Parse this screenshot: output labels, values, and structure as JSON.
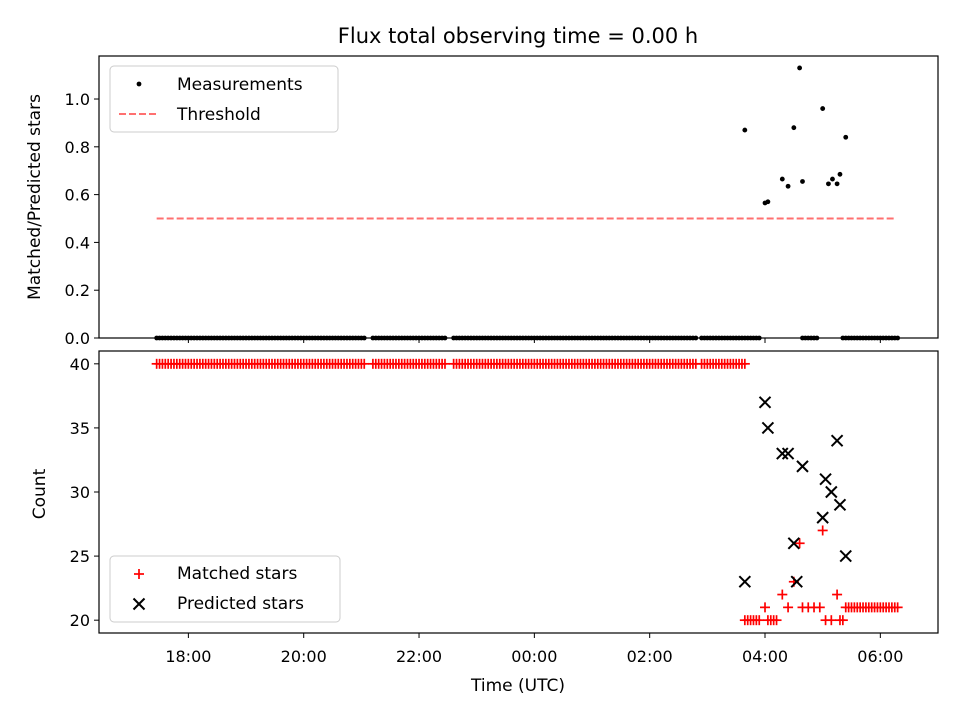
{
  "title": "Flux total observing time = 0.00 h",
  "x_axis": {
    "label": "Time (UTC)",
    "ticks": [
      {
        "hour": 18,
        "label": "18:00"
      },
      {
        "hour": 20,
        "label": "20:00"
      },
      {
        "hour": 22,
        "label": "22:00"
      },
      {
        "hour": 24,
        "label": "00:00"
      },
      {
        "hour": 26,
        "label": "02:00"
      },
      {
        "hour": 28,
        "label": "04:00"
      },
      {
        "hour": 30,
        "label": "06:00"
      }
    ]
  },
  "colors": {
    "measurements": "#000000",
    "threshold": "#ff7070",
    "matched": "#ff0000",
    "predicted": "#000000",
    "axes": "#000000"
  },
  "chart_data": [
    {
      "type": "scatter",
      "ylabel": "Matched/Predicted stars",
      "ylim": [
        0,
        1.18
      ],
      "xlim_hours": [
        16.45,
        31.0
      ],
      "yticks": [
        "0.0",
        "0.2",
        "0.4",
        "0.6",
        "0.8",
        "1.0"
      ],
      "legend_position": "upper-left",
      "series": [
        {
          "name": "Measurements",
          "marker": "dot",
          "note_zero_run": "Ratio 0.0 at every sample (hours) where no stars were matched",
          "zero_run": [
            [
              17.45,
              17.5,
              17.55,
              17.6,
              17.65,
              17.7,
              17.75,
              17.8,
              17.85,
              17.9,
              17.95,
              18.0,
              18.05,
              18.1,
              18.15,
              18.2,
              18.25,
              18.3,
              18.35,
              18.4,
              18.45,
              18.5,
              18.55,
              18.6,
              18.65,
              18.7,
              18.75,
              18.8,
              18.85,
              18.9,
              18.95,
              19.0,
              19.05,
              19.1,
              19.15,
              19.2,
              19.25,
              19.3,
              19.35,
              19.4,
              19.45,
              19.5,
              19.55,
              19.6,
              19.65,
              19.7,
              19.75,
              19.8,
              19.85,
              19.9,
              19.95,
              20.0,
              20.05,
              20.1,
              20.15,
              20.2,
              20.25,
              20.3,
              20.35,
              20.4,
              20.45,
              20.5,
              20.55,
              20.6,
              20.65,
              20.7,
              20.75,
              20.8,
              20.85,
              20.9,
              20.95,
              21.0,
              21.05
            ],
            [
              21.2,
              21.25,
              21.3,
              21.35,
              21.4,
              21.45,
              21.5,
              21.55,
              21.6,
              21.65,
              21.7,
              21.75,
              21.8,
              21.85,
              21.9,
              21.95,
              22.0,
              22.05,
              22.1,
              22.15,
              22.2,
              22.25,
              22.3,
              22.35,
              22.4,
              22.45
            ],
            [
              22.6,
              22.65,
              22.7,
              22.75,
              22.8,
              22.85,
              22.9,
              22.95,
              23.0,
              23.05,
              23.1,
              23.15,
              23.2,
              23.25,
              23.3,
              23.35,
              23.4,
              23.45,
              23.5,
              23.55,
              23.6,
              23.65,
              23.7,
              23.75,
              23.8,
              23.85,
              23.9,
              23.95,
              24.0,
              24.05,
              24.1,
              24.15,
              24.2,
              24.25,
              24.3,
              24.35,
              24.4,
              24.45,
              24.5,
              24.55,
              24.6,
              24.65,
              24.7,
              24.75,
              24.8,
              24.85,
              24.9,
              24.95,
              25.0,
              25.05,
              25.1,
              25.15,
              25.2,
              25.25,
              25.3,
              25.35,
              25.4,
              25.45,
              25.5,
              25.55,
              25.6,
              25.65,
              25.7,
              25.75,
              25.8,
              25.85,
              25.9,
              25.95,
              26.0,
              26.05,
              26.1,
              26.15,
              26.2,
              26.25,
              26.3,
              26.35,
              26.4,
              26.45,
              26.5,
              26.55,
              26.6,
              26.65,
              26.7,
              26.75,
              26.8
            ],
            [
              26.9,
              26.95,
              27.0,
              27.05,
              27.1,
              27.15,
              27.2,
              27.25,
              27.3,
              27.35,
              27.4,
              27.45,
              27.5,
              27.55,
              27.6,
              27.65
            ],
            [
              27.7,
              27.75,
              27.8,
              27.85,
              27.9
            ],
            [
              28.65,
              28.7,
              28.75,
              28.8,
              28.85,
              28.9
            ],
            [
              29.35,
              29.4,
              29.45,
              29.5,
              29.55,
              29.6,
              29.65,
              29.7,
              29.75,
              29.8,
              29.85,
              29.9,
              29.95,
              30.0,
              30.05,
              30.1,
              30.15,
              30.2,
              30.25,
              30.3
            ]
          ],
          "points": [
            {
              "x": 27.65,
              "y": 0.87
            },
            {
              "x": 28.0,
              "y": 0.565
            },
            {
              "x": 28.05,
              "y": 0.57
            },
            {
              "x": 28.3,
              "y": 0.665
            },
            {
              "x": 28.4,
              "y": 0.635
            },
            {
              "x": 28.5,
              "y": 0.88
            },
            {
              "x": 28.6,
              "y": 1.13
            },
            {
              "x": 28.65,
              "y": 0.655
            },
            {
              "x": 29.0,
              "y": 0.96
            },
            {
              "x": 29.1,
              "y": 0.645
            },
            {
              "x": 29.17,
              "y": 0.665
            },
            {
              "x": 29.25,
              "y": 0.645
            },
            {
              "x": 29.3,
              "y": 0.685
            },
            {
              "x": 29.4,
              "y": 0.84
            }
          ]
        },
        {
          "name": "Threshold",
          "style": "dashed",
          "y": 0.5,
          "x_range": [
            17.45,
            30.25
          ]
        }
      ]
    },
    {
      "type": "scatter",
      "xlabel": "Time (UTC)",
      "ylabel": "Count",
      "ylim": [
        19.0,
        41.0
      ],
      "xlim_hours": [
        16.45,
        31.0
      ],
      "yticks": [
        "20",
        "25",
        "30",
        "35",
        "40"
      ],
      "legend_position": "lower-left",
      "series": [
        {
          "name": "Matched stars",
          "marker": "plus",
          "note_constant_run": "Count 40 at every sample (hours) in these runs",
          "constant_value": 40,
          "constant_runs": [
            [
              17.45,
              17.5,
              17.55,
              17.6,
              17.65,
              17.7,
              17.75,
              17.8,
              17.85,
              17.9,
              17.95,
              18.0,
              18.05,
              18.1,
              18.15,
              18.2,
              18.25,
              18.3,
              18.35,
              18.4,
              18.45,
              18.5,
              18.55,
              18.6,
              18.65,
              18.7,
              18.75,
              18.8,
              18.85,
              18.9,
              18.95,
              19.0,
              19.05,
              19.1,
              19.15,
              19.2,
              19.25,
              19.3,
              19.35,
              19.4,
              19.45,
              19.5,
              19.55,
              19.6,
              19.65,
              19.7,
              19.75,
              19.8,
              19.85,
              19.9,
              19.95,
              20.0,
              20.05,
              20.1,
              20.15,
              20.2,
              20.25,
              20.3,
              20.35,
              20.4,
              20.45,
              20.5,
              20.55,
              20.6,
              20.65,
              20.7,
              20.75,
              20.8,
              20.85,
              20.9,
              20.95,
              21.0,
              21.05
            ],
            [
              21.2,
              21.25,
              21.3,
              21.35,
              21.4,
              21.45,
              21.5,
              21.55,
              21.6,
              21.65,
              21.7,
              21.75,
              21.8,
              21.85,
              21.9,
              21.95,
              22.0,
              22.05,
              22.1,
              22.15,
              22.2,
              22.25,
              22.3,
              22.35,
              22.4,
              22.45
            ],
            [
              22.6,
              22.65,
              22.7,
              22.75,
              22.8,
              22.85,
              22.9,
              22.95,
              23.0,
              23.05,
              23.1,
              23.15,
              23.2,
              23.25,
              23.3,
              23.35,
              23.4,
              23.45,
              23.5,
              23.55,
              23.6,
              23.65,
              23.7,
              23.75,
              23.8,
              23.85,
              23.9,
              23.95,
              24.0,
              24.05,
              24.1,
              24.15,
              24.2,
              24.25,
              24.3,
              24.35,
              24.4,
              24.45,
              24.5,
              24.55,
              24.6,
              24.65,
              24.7,
              24.75,
              24.8,
              24.85,
              24.9,
              24.95,
              25.0,
              25.05,
              25.1,
              25.15,
              25.2,
              25.25,
              25.3,
              25.35,
              25.4,
              25.45,
              25.5,
              25.55,
              25.6,
              25.65,
              25.7,
              25.75,
              25.8,
              25.85,
              25.9,
              25.95,
              26.0,
              26.05,
              26.1,
              26.15,
              26.2,
              26.25,
              26.3,
              26.35,
              26.4,
              26.45,
              26.5,
              26.55,
              26.6,
              26.65,
              26.7,
              26.75,
              26.8
            ],
            [
              26.9,
              26.95,
              27.0,
              27.05,
              27.1,
              27.15,
              27.2,
              27.25,
              27.3,
              27.35,
              27.4,
              27.45,
              27.5,
              27.55,
              27.6,
              27.65
            ]
          ],
          "points": [
            {
              "x": 27.65,
              "y": 20
            },
            {
              "x": 27.7,
              "y": 20
            },
            {
              "x": 27.75,
              "y": 20
            },
            {
              "x": 27.8,
              "y": 20
            },
            {
              "x": 27.85,
              "y": 20
            },
            {
              "x": 27.9,
              "y": 20
            },
            {
              "x": 28.0,
              "y": 21
            },
            {
              "x": 28.05,
              "y": 20
            },
            {
              "x": 28.1,
              "y": 20
            },
            {
              "x": 28.15,
              "y": 20
            },
            {
              "x": 28.2,
              "y": 20
            },
            {
              "x": 28.3,
              "y": 22
            },
            {
              "x": 28.4,
              "y": 21
            },
            {
              "x": 28.5,
              "y": 23
            },
            {
              "x": 28.6,
              "y": 26
            },
            {
              "x": 28.65,
              "y": 21
            },
            {
              "x": 28.75,
              "y": 21
            },
            {
              "x": 28.85,
              "y": 21
            },
            {
              "x": 28.95,
              "y": 21
            },
            {
              "x": 29.0,
              "y": 27
            },
            {
              "x": 29.05,
              "y": 20
            },
            {
              "x": 29.15,
              "y": 20
            },
            {
              "x": 29.25,
              "y": 22
            },
            {
              "x": 29.3,
              "y": 20
            },
            {
              "x": 29.35,
              "y": 20
            },
            {
              "x": 29.4,
              "y": 21
            },
            {
              "x": 29.45,
              "y": 21
            },
            {
              "x": 29.5,
              "y": 21
            },
            {
              "x": 29.55,
              "y": 21
            },
            {
              "x": 29.6,
              "y": 21
            },
            {
              "x": 29.65,
              "y": 21
            },
            {
              "x": 29.7,
              "y": 21
            },
            {
              "x": 29.75,
              "y": 21
            },
            {
              "x": 29.8,
              "y": 21
            },
            {
              "x": 29.85,
              "y": 21
            },
            {
              "x": 29.9,
              "y": 21
            },
            {
              "x": 29.95,
              "y": 21
            },
            {
              "x": 30.0,
              "y": 21
            },
            {
              "x": 30.05,
              "y": 21
            },
            {
              "x": 30.1,
              "y": 21
            },
            {
              "x": 30.15,
              "y": 21
            },
            {
              "x": 30.2,
              "y": 21
            },
            {
              "x": 30.25,
              "y": 21
            },
            {
              "x": 30.3,
              "y": 21
            }
          ]
        },
        {
          "name": "Predicted stars",
          "marker": "x",
          "points": [
            {
              "x": 27.65,
              "y": 23
            },
            {
              "x": 28.0,
              "y": 37
            },
            {
              "x": 28.05,
              "y": 35
            },
            {
              "x": 28.3,
              "y": 33
            },
            {
              "x": 28.4,
              "y": 33
            },
            {
              "x": 28.5,
              "y": 26
            },
            {
              "x": 28.55,
              "y": 23
            },
            {
              "x": 28.65,
              "y": 32
            },
            {
              "x": 29.0,
              "y": 28
            },
            {
              "x": 29.05,
              "y": 31
            },
            {
              "x": 29.15,
              "y": 30
            },
            {
              "x": 29.25,
              "y": 34
            },
            {
              "x": 29.3,
              "y": 29
            },
            {
              "x": 29.4,
              "y": 25
            }
          ]
        }
      ]
    }
  ]
}
